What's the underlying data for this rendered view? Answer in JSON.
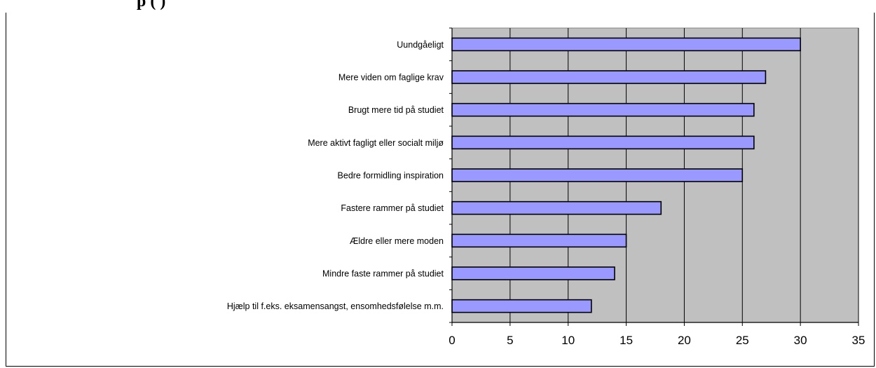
{
  "page": {
    "header_fragment": "p       (        )"
  },
  "chart_data": {
    "type": "bar",
    "orientation": "horizontal",
    "categories": [
      "Uundgåeligt",
      "Mere viden om faglige krav",
      "Brugt mere tid på studiet",
      "Mere aktivt fagligt eller socialt miljø",
      "Bedre formidling inspiration",
      "Fastere rammer på studiet",
      "Ældre eller mere moden",
      "Mindre faste rammer på studiet",
      "Hjælp til f.eks. eksamensangst, ensomhedsfølelse m.m."
    ],
    "values": [
      30,
      27,
      26,
      26,
      25,
      18,
      15,
      14,
      12
    ],
    "xlim": [
      0,
      35
    ],
    "xticks": [
      0,
      5,
      10,
      15,
      20,
      25,
      30,
      35
    ],
    "grid": "vertical",
    "legend": "none",
    "colors": {
      "bar_fill": "#9999ff",
      "bar_stroke": "#000000",
      "plot_bg": "#c0c0c0",
      "grid": "#000000"
    }
  }
}
